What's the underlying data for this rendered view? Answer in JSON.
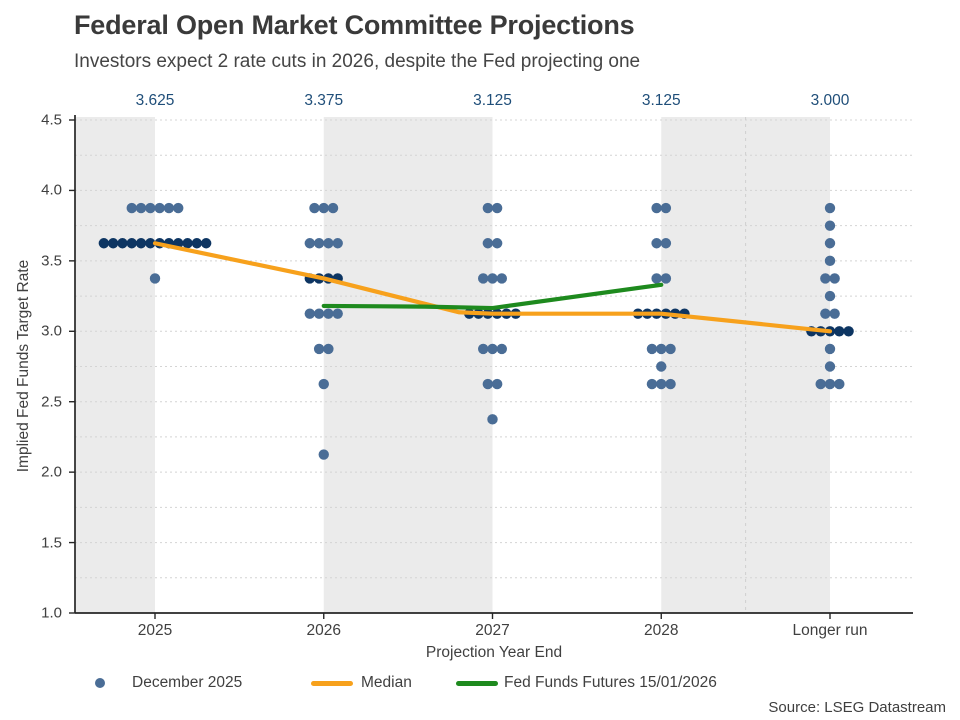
{
  "chart_data": {
    "type": "scatter",
    "title": "Federal Open Market Committee Projections",
    "subtitle": "Investors expect 2 rate cuts in 2026, despite the Fed projecting one",
    "source": "Source: LSEG Datastream",
    "xlabel": "Projection Year End",
    "ylabel": "Implied Fed Funds Target Rate",
    "categories": [
      "2025",
      "2026",
      "2027",
      "2028",
      "Longer run"
    ],
    "median_top_labels": [
      "3.625",
      "3.375",
      "3.125",
      "3.125",
      "3.000"
    ],
    "ylim": [
      1.0,
      4.5
    ],
    "yticks": [
      {
        "value": 4.5,
        "label": "4.5"
      },
      {
        "value": 4.0,
        "label": "4.0"
      },
      {
        "value": 3.5,
        "label": "3.5"
      },
      {
        "value": 3.0,
        "label": "3.0"
      },
      {
        "value": 2.5,
        "label": "2.5"
      },
      {
        "value": 2.0,
        "label": "2.0"
      },
      {
        "value": 1.5,
        "label": "1.5"
      },
      {
        "value": 1.0,
        "label": "1.0"
      }
    ],
    "grid": {
      "step": 0.25,
      "style": "dotted",
      "color": "#d4d4d4"
    },
    "shaded_column_intervals": [
      [
        -0.5,
        0
      ],
      [
        1,
        2
      ],
      [
        3,
        4
      ]
    ],
    "shaded_band_color": "#ebebeb",
    "longer_run_separator_x": 3.5,
    "dot_series": {
      "name": "December 2025",
      "dot_color": "#4a6d96",
      "median_row_dot_color": "#0d3562",
      "groups": [
        {
          "category": "2025",
          "value": 3.875,
          "count": 6,
          "median_row": false
        },
        {
          "category": "2025",
          "value": 3.625,
          "count": 12,
          "median_row": true
        },
        {
          "category": "2025",
          "value": 3.375,
          "count": 1,
          "median_row": false
        },
        {
          "category": "2026",
          "value": 3.875,
          "count": 3,
          "median_row": false
        },
        {
          "category": "2026",
          "value": 3.625,
          "count": 4,
          "median_row": false
        },
        {
          "category": "2026",
          "value": 3.375,
          "count": 4,
          "median_row": true
        },
        {
          "category": "2026",
          "value": 3.125,
          "count": 4,
          "median_row": false
        },
        {
          "category": "2026",
          "value": 2.875,
          "count": 2,
          "median_row": false
        },
        {
          "category": "2026",
          "value": 2.625,
          "count": 1,
          "median_row": false
        },
        {
          "category": "2026",
          "value": 2.125,
          "count": 1,
          "median_row": false
        },
        {
          "category": "2027",
          "value": 3.875,
          "count": 2,
          "median_row": false
        },
        {
          "category": "2027",
          "value": 3.625,
          "count": 2,
          "median_row": false
        },
        {
          "category": "2027",
          "value": 3.375,
          "count": 3,
          "median_row": false
        },
        {
          "category": "2027",
          "value": 3.125,
          "count": 6,
          "median_row": true
        },
        {
          "category": "2027",
          "value": 2.875,
          "count": 3,
          "median_row": false
        },
        {
          "category": "2027",
          "value": 2.625,
          "count": 2,
          "median_row": false
        },
        {
          "category": "2027",
          "value": 2.375,
          "count": 1,
          "median_row": false
        },
        {
          "category": "2028",
          "value": 3.875,
          "count": 2,
          "median_row": false
        },
        {
          "category": "2028",
          "value": 3.625,
          "count": 2,
          "median_row": false
        },
        {
          "category": "2028",
          "value": 3.375,
          "count": 2,
          "median_row": false
        },
        {
          "category": "2028",
          "value": 3.125,
          "count": 6,
          "median_row": true
        },
        {
          "category": "2028",
          "value": 2.875,
          "count": 3,
          "median_row": false
        },
        {
          "category": "2028",
          "value": 2.75,
          "count": 1,
          "median_row": false
        },
        {
          "category": "2028",
          "value": 2.625,
          "count": 3,
          "median_row": false
        },
        {
          "category": "Longer run",
          "value": 3.875,
          "count": 1,
          "median_row": false
        },
        {
          "category": "Longer run",
          "value": 3.75,
          "count": 1,
          "median_row": false
        },
        {
          "category": "Longer run",
          "value": 3.625,
          "count": 1,
          "median_row": false
        },
        {
          "category": "Longer run",
          "value": 3.5,
          "count": 1,
          "median_row": false
        },
        {
          "category": "Longer run",
          "value": 3.375,
          "count": 2,
          "median_row": false
        },
        {
          "category": "Longer run",
          "value": 3.25,
          "count": 1,
          "median_row": false
        },
        {
          "category": "Longer run",
          "value": 3.125,
          "count": 2,
          "median_row": false
        },
        {
          "category": "Longer run",
          "value": 3.0,
          "count": 5,
          "median_row": true
        },
        {
          "category": "Longer run",
          "value": 2.875,
          "count": 1,
          "median_row": false
        },
        {
          "category": "Longer run",
          "value": 2.75,
          "count": 1,
          "median_row": false
        },
        {
          "category": "Longer run",
          "value": 2.625,
          "count": 3,
          "median_row": false
        }
      ]
    },
    "series": [
      {
        "name": "Median",
        "color": "#f7a11c",
        "x": [
          0,
          1,
          1.8,
          2,
          3,
          4
        ],
        "y": [
          3.625,
          3.375,
          3.135,
          3.125,
          3.125,
          3.0
        ]
      },
      {
        "name": "Fed Funds Futures 15/01/2026",
        "color": "#1e8a1e",
        "x": [
          1,
          1.6,
          2,
          3
        ],
        "y": [
          3.18,
          3.175,
          3.165,
          3.33
        ]
      }
    ],
    "legend": [
      {
        "label": "December 2025",
        "swatch": "dot",
        "color": "#4a6d96"
      },
      {
        "label": "Median",
        "swatch": "line",
        "color": "#f7a11c"
      },
      {
        "label": "Fed Funds Futures 15/01/2026",
        "swatch": "line",
        "color": "#1e8a1e"
      }
    ],
    "axis_color": "#262626"
  }
}
